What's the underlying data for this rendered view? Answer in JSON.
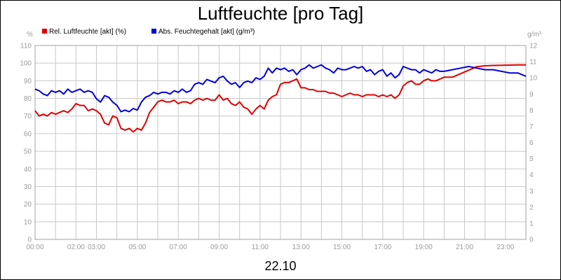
{
  "chart_data": {
    "type": "line",
    "title": "Luftfeuchte [pro Tag]",
    "date_label": "22.10",
    "x_ticks": [
      "00:00",
      "02:00",
      "03:00",
      "05:00",
      "07:00",
      "09:00",
      "11:00",
      "13:00",
      "15:00",
      "17:00",
      "19:00",
      "21:00",
      "23:00"
    ],
    "x_tick_hours": [
      0,
      2,
      3,
      5,
      7,
      9,
      11,
      13,
      15,
      17,
      19,
      21,
      23
    ],
    "xlim": [
      0,
      24
    ],
    "grid": true,
    "legend_position": "top-left",
    "y_left": {
      "unit": "%",
      "ylim": [
        0,
        110
      ],
      "ticks": [
        0,
        10,
        20,
        30,
        40,
        50,
        60,
        70,
        80,
        90,
        100,
        110
      ]
    },
    "y_right": {
      "unit": "g/m³",
      "ylim": [
        0,
        12
      ],
      "ticks": [
        0,
        1,
        2,
        3,
        4,
        5,
        6,
        7,
        8,
        9,
        10,
        11,
        12
      ]
    },
    "series": [
      {
        "name": "Rel. Luftfeuchte [akt] (%)",
        "color": "#e00000",
        "axis": "left",
        "x": [
          0,
          0.2,
          0.4,
          0.6,
          0.8,
          1.0,
          1.2,
          1.4,
          1.6,
          1.8,
          2.0,
          2.2,
          2.4,
          2.6,
          2.8,
          3.0,
          3.2,
          3.4,
          3.6,
          3.8,
          4.0,
          4.2,
          4.4,
          4.6,
          4.8,
          5.0,
          5.2,
          5.4,
          5.6,
          5.8,
          6.0,
          6.2,
          6.4,
          6.6,
          6.8,
          7.0,
          7.2,
          7.4,
          7.6,
          7.8,
          8.0,
          8.2,
          8.4,
          8.6,
          8.8,
          9.0,
          9.2,
          9.4,
          9.6,
          9.8,
          10.0,
          10.2,
          10.4,
          10.6,
          10.8,
          11.0,
          11.2,
          11.4,
          11.6,
          11.8,
          12.0,
          12.2,
          12.4,
          12.6,
          12.8,
          13.0,
          13.2,
          13.4,
          13.6,
          13.8,
          14.0,
          14.2,
          14.4,
          14.6,
          14.8,
          15.0,
          15.2,
          15.4,
          15.6,
          15.8,
          16.0,
          16.2,
          16.4,
          16.6,
          16.8,
          17.0,
          17.2,
          17.4,
          17.6,
          17.8,
          18.0,
          18.2,
          18.4,
          18.6,
          18.8,
          19.0,
          19.2,
          19.4,
          19.6,
          19.8,
          20.0,
          20.4,
          20.8,
          21.2,
          21.6,
          22.0,
          22.4,
          22.8,
          23.2,
          23.6,
          24.0
        ],
        "values": [
          73,
          70,
          71,
          70,
          72,
          71,
          72,
          73,
          72,
          74,
          77,
          76,
          76,
          73,
          74,
          73,
          71,
          66,
          65,
          70,
          69,
          63,
          62,
          63,
          61,
          63,
          62,
          66,
          72,
          75,
          78,
          79,
          78,
          78,
          79,
          77,
          78,
          78,
          77,
          79,
          80,
          79,
          80,
          79,
          79,
          82,
          79,
          80,
          77,
          76,
          78,
          75,
          74,
          71,
          74,
          76,
          74,
          79,
          81,
          82,
          88,
          89,
          89,
          90,
          91,
          86,
          86,
          85,
          85,
          84,
          84,
          84,
          83,
          83,
          82,
          81,
          82,
          83,
          82,
          82,
          81,
          82,
          82,
          82,
          81,
          82,
          81,
          82,
          80,
          82,
          87,
          89,
          90,
          88,
          88,
          90,
          91,
          90,
          90,
          91,
          92,
          92,
          94,
          96,
          98,
          98.5,
          98.7,
          98.8,
          98.9,
          99,
          99
        ]
      },
      {
        "name": "Abs. Feuchtegehalt [akt] (g/m³)",
        "color": "#0000dd",
        "axis": "right",
        "x": [
          0,
          0.2,
          0.4,
          0.6,
          0.8,
          1.0,
          1.2,
          1.4,
          1.6,
          1.8,
          2.0,
          2.2,
          2.4,
          2.6,
          2.8,
          3.0,
          3.2,
          3.4,
          3.6,
          3.8,
          4.0,
          4.2,
          4.4,
          4.6,
          4.8,
          5.0,
          5.2,
          5.4,
          5.6,
          5.8,
          6.0,
          6.2,
          6.4,
          6.6,
          6.8,
          7.0,
          7.2,
          7.4,
          7.6,
          7.8,
          8.0,
          8.2,
          8.4,
          8.6,
          8.8,
          9.0,
          9.2,
          9.4,
          9.6,
          9.8,
          10.0,
          10.2,
          10.4,
          10.6,
          10.8,
          11.0,
          11.2,
          11.4,
          11.6,
          11.8,
          12.0,
          12.2,
          12.4,
          12.6,
          12.8,
          13.0,
          13.2,
          13.4,
          13.6,
          13.8,
          14.0,
          14.2,
          14.4,
          14.6,
          14.8,
          15.0,
          15.2,
          15.4,
          15.6,
          15.8,
          16.0,
          16.2,
          16.4,
          16.6,
          16.8,
          17.0,
          17.2,
          17.4,
          17.6,
          17.8,
          18.0,
          18.2,
          18.4,
          18.6,
          18.8,
          19.0,
          19.2,
          19.4,
          19.6,
          19.8,
          20.0,
          20.4,
          20.8,
          21.2,
          21.6,
          22.0,
          22.4,
          22.8,
          23.2,
          23.6,
          24.0
        ],
        "values": [
          9.3,
          9.2,
          9.0,
          8.9,
          9.2,
          9.1,
          9.2,
          9.0,
          9.3,
          9.1,
          9.2,
          9.3,
          9.1,
          9.2,
          9.1,
          8.7,
          8.5,
          8.9,
          8.8,
          8.5,
          8.3,
          7.9,
          8.0,
          7.9,
          8.1,
          8.0,
          8.5,
          8.8,
          8.9,
          9.1,
          9.0,
          9.1,
          9.1,
          9.0,
          9.2,
          9.1,
          9.3,
          9.1,
          9.2,
          9.6,
          9.7,
          9.6,
          9.9,
          9.8,
          9.7,
          10.0,
          10.1,
          9.8,
          9.6,
          9.7,
          9.4,
          9.7,
          9.8,
          9.7,
          10.0,
          9.9,
          10.1,
          10.6,
          10.3,
          10.6,
          10.5,
          10.6,
          10.4,
          10.5,
          10.2,
          10.5,
          10.6,
          10.8,
          10.6,
          10.7,
          10.8,
          10.6,
          10.5,
          10.3,
          10.6,
          10.5,
          10.5,
          10.6,
          10.7,
          10.6,
          10.7,
          10.4,
          10.5,
          10.2,
          10.4,
          10.5,
          10.1,
          10.3,
          10.0,
          10.2,
          10.7,
          10.6,
          10.5,
          10.5,
          10.3,
          10.5,
          10.4,
          10.3,
          10.5,
          10.4,
          10.4,
          10.5,
          10.6,
          10.7,
          10.6,
          10.5,
          10.5,
          10.4,
          10.3,
          10.3,
          10.1
        ]
      }
    ]
  }
}
